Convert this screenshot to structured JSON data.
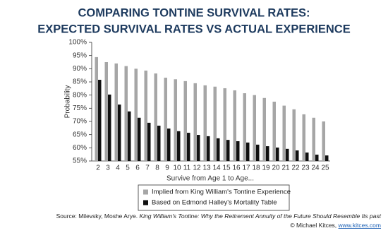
{
  "chart_data": {
    "type": "bar",
    "title": [
      "COMPARING TONTINE SURVIVAL RATES:",
      "EXPECTED SURVIVAL RATES VS ACTUAL EXPERIENCE"
    ],
    "y_label": "Probability",
    "x_label": "Survive from Age 1 to Age...",
    "categories": [
      "2",
      "3",
      "4",
      "5",
      "6",
      "7",
      "8",
      "9",
      "10",
      "11",
      "12",
      "13",
      "14",
      "15",
      "16",
      "17",
      "18",
      "19",
      "20",
      "21",
      "22",
      "23",
      "24",
      "25"
    ],
    "series": [
      {
        "name": "Implied from King William's Tontine Experience",
        "color": "#a6a6a6",
        "values": [
          94.4,
          92.5,
          92,
          91,
          90,
          89.3,
          88.2,
          86.6,
          86,
          85.3,
          84.5,
          83.7,
          83.2,
          82.6,
          81.8,
          80.7,
          80,
          78.9,
          77.5,
          76,
          74.6,
          72.7,
          71.4,
          70
        ]
      },
      {
        "name": "Based on Edmond Halley's Mortality Table",
        "color": "#111111",
        "values": [
          85.8,
          80.2,
          76.4,
          73.8,
          71.4,
          69.5,
          68.4,
          67.3,
          66.3,
          65.7,
          64.9,
          64.4,
          63.6,
          63,
          62.5,
          62,
          61.2,
          60.6,
          60.1,
          59.6,
          59,
          58.2,
          57.4,
          57.1
        ]
      }
    ],
    "ylim": [
      55,
      100
    ],
    "yticks": [
      {
        "value": 55,
        "label": "55%"
      },
      {
        "value": 60,
        "label": "60%"
      },
      {
        "value": 65,
        "label": "65%"
      },
      {
        "value": 70,
        "label": "70%"
      },
      {
        "value": 75,
        "label": "75%"
      },
      {
        "value": 80,
        "label": "80%"
      },
      {
        "value": 85,
        "label": "85%"
      },
      {
        "value": 90,
        "label": "90%"
      },
      {
        "value": 95,
        "label": "95%"
      },
      {
        "value": 100,
        "label": "100%"
      }
    ],
    "grid": false,
    "legend_position": "bottom",
    "source": "Source: Milevsky, Moshe Arye. ",
    "source_title": "King William's Tontine: Why the Retirement Annuity of the Future Should Resemble Its past",
    "credit": "© Michael Kitces, ",
    "credit_link": "www.kitces.com"
  }
}
